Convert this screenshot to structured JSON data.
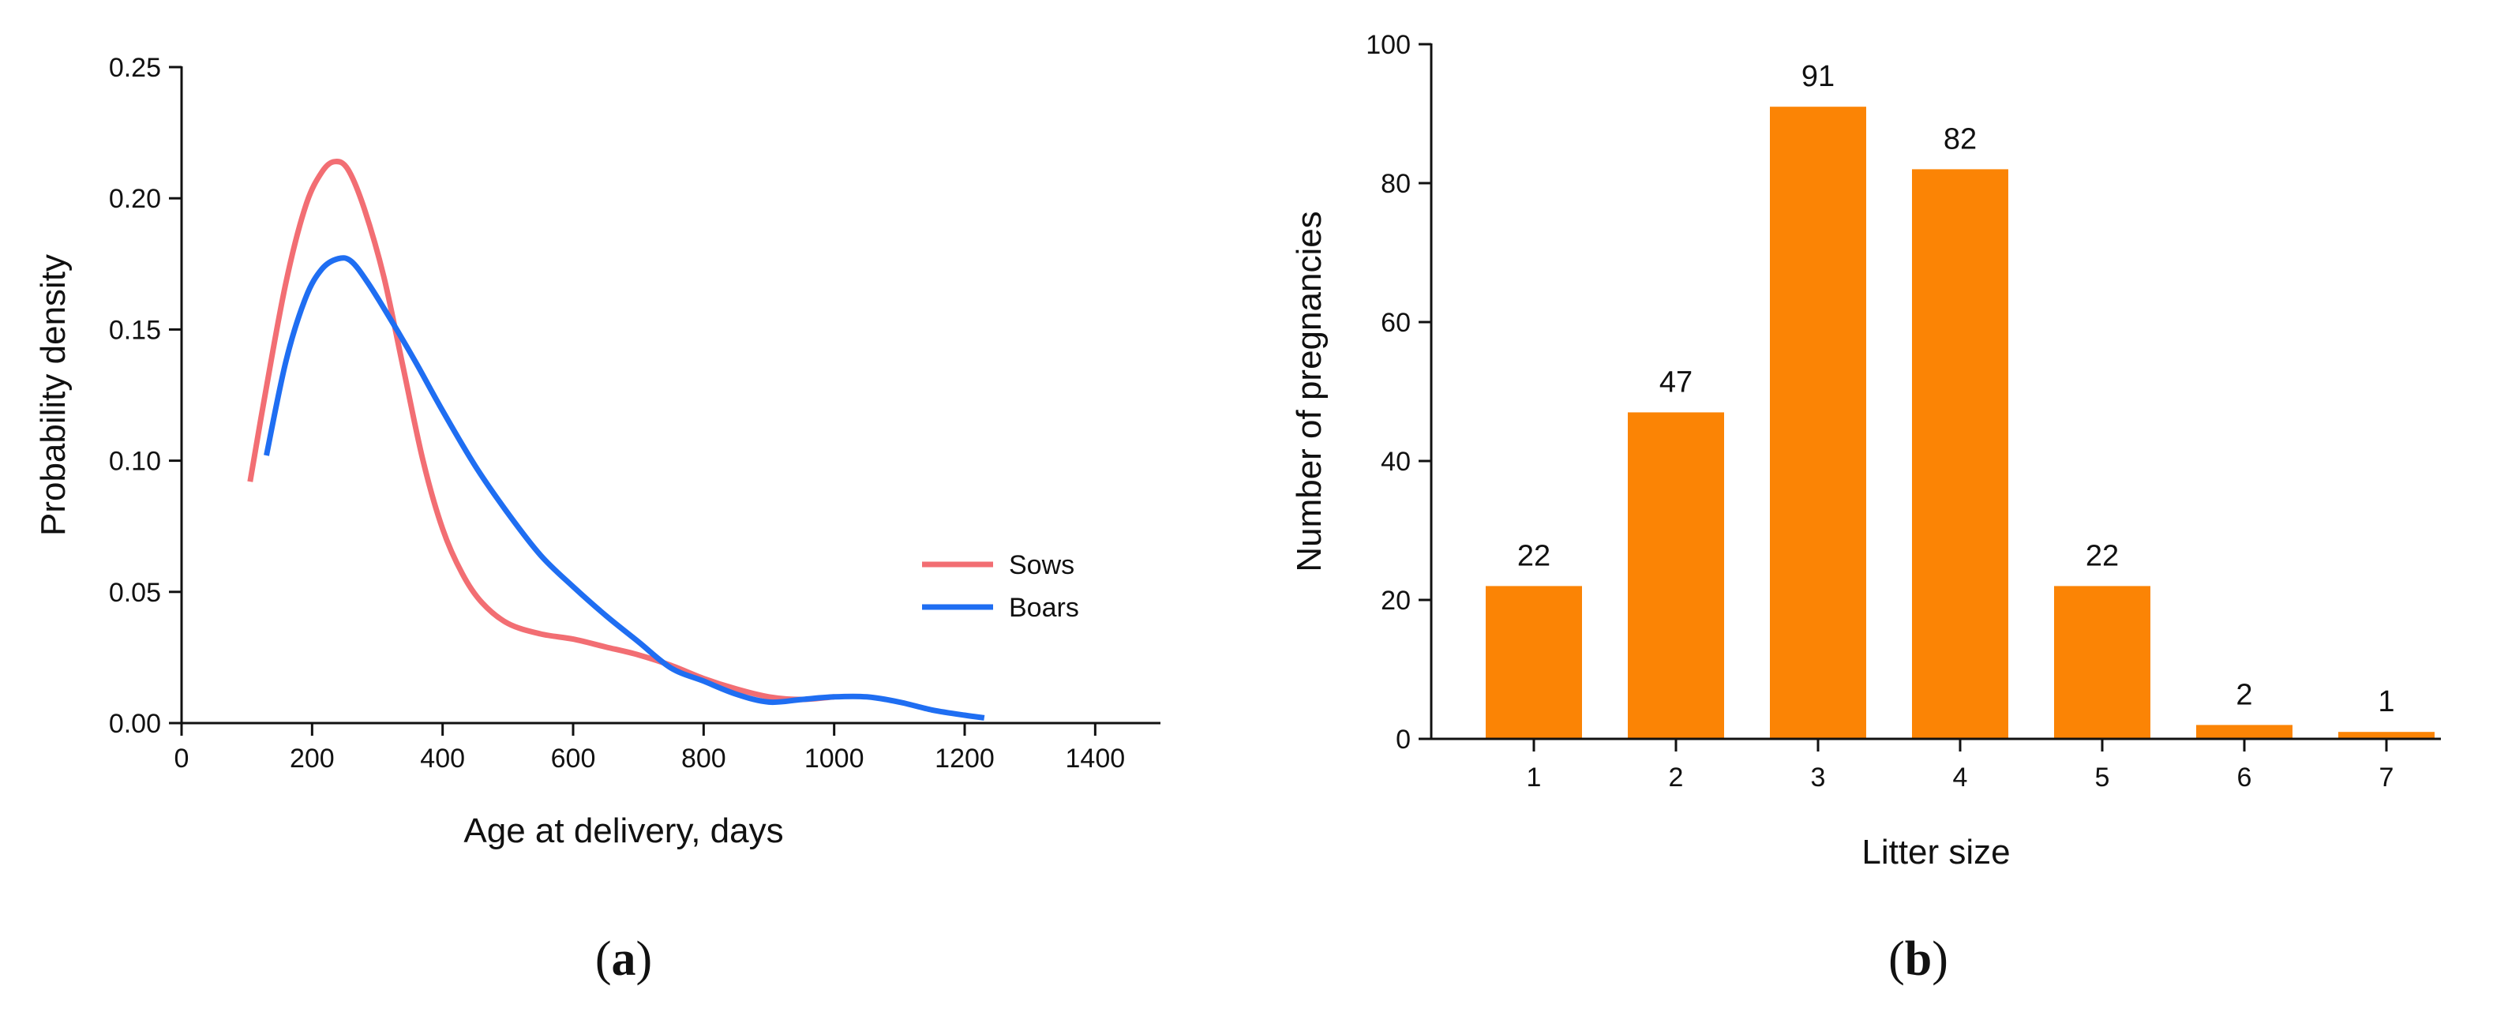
{
  "colors": {
    "axis": "#111111",
    "sows": "#F26E73",
    "boars": "#1F6EF2",
    "bars": "#FB8405"
  },
  "chart_data": [
    {
      "type": "line",
      "panel_label_open": "(",
      "panel_label_letter": "a",
      "panel_label_close": ")",
      "title": "",
      "xlabel": "Age at delivery, days",
      "ylabel": "Probability density",
      "xlim": [
        0,
        1500
      ],
      "ylim": [
        0,
        0.25
      ],
      "xticks": [
        0,
        200,
        400,
        600,
        800,
        1000,
        1200,
        1400
      ],
      "xtick_labels": [
        "0",
        "200",
        "400",
        "600",
        "800",
        "1000",
        "1200",
        "1400"
      ],
      "yticks": [
        0,
        0.05,
        0.1,
        0.15,
        0.2,
        0.25
      ],
      "ytick_labels": [
        "0.00",
        "0.05",
        "0.10",
        "0.15",
        "0.20",
        "0.25"
      ],
      "grid": false,
      "legend_position": "right",
      "series": [
        {
          "name": "Sows",
          "color_key": "sows",
          "x": [
            105,
            130,
            160,
            190,
            215,
            235,
            255,
            280,
            310,
            340,
            370,
            400,
            430,
            460,
            500,
            550,
            600,
            650,
            700,
            750,
            800,
            850,
            900,
            950,
            1000
          ],
          "y": [
            0.092,
            0.128,
            0.168,
            0.197,
            0.21,
            0.214,
            0.211,
            0.196,
            0.17,
            0.135,
            0.1,
            0.074,
            0.057,
            0.046,
            0.038,
            0.034,
            0.032,
            0.029,
            0.026,
            0.022,
            0.017,
            0.013,
            0.01,
            0.009,
            0.01
          ]
        },
        {
          "name": "Boars",
          "color_key": "boars",
          "x": [
            130,
            160,
            190,
            215,
            240,
            260,
            285,
            320,
            360,
            400,
            450,
            500,
            550,
            600,
            650,
            700,
            750,
            800,
            850,
            900,
            950,
            1000,
            1050,
            1100,
            1150,
            1200,
            1230
          ],
          "y": [
            0.102,
            0.138,
            0.162,
            0.173,
            0.177,
            0.176,
            0.168,
            0.154,
            0.137,
            0.119,
            0.098,
            0.08,
            0.064,
            0.052,
            0.041,
            0.031,
            0.021,
            0.016,
            0.011,
            0.008,
            0.009,
            0.01,
            0.01,
            0.008,
            0.005,
            0.003,
            0.002
          ]
        }
      ]
    },
    {
      "type": "bar",
      "panel_label_open": "(",
      "panel_label_letter": "b",
      "panel_label_close": ")",
      "title": "",
      "xlabel": "Litter size",
      "ylabel": "Number of pregnancies",
      "categories": [
        "1",
        "2",
        "3",
        "4",
        "5",
        "6",
        "7"
      ],
      "values": [
        22,
        47,
        91,
        82,
        22,
        2,
        1
      ],
      "data_labels": [
        "22",
        "47",
        "91",
        "82",
        "22",
        "2",
        "1"
      ],
      "ylim": [
        0,
        100
      ],
      "yticks": [
        0,
        20,
        40,
        60,
        80,
        100
      ],
      "ytick_labels": [
        "0",
        "20",
        "40",
        "60",
        "80",
        "100"
      ],
      "grid": false
    }
  ]
}
